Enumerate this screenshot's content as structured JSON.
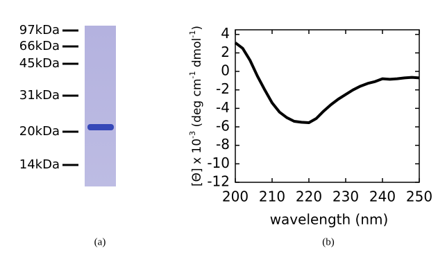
{
  "gel": {
    "markers": [
      "97kDa",
      "66kDa",
      "45kDa",
      "31kDa",
      "20kDa",
      "14kDa"
    ],
    "caption": "(a)"
  },
  "chart_data": {
    "type": "line",
    "caption": "(b)",
    "xlabel": "wavelength (nm)",
    "ylabel": [
      "[Θ] x 10",
      "-3",
      " (deg cm",
      "-1",
      " dmol",
      "-1",
      ")"
    ],
    "x": [
      200,
      202,
      204,
      206,
      208,
      210,
      212,
      214,
      216,
      218,
      220,
      222,
      224,
      226,
      228,
      230,
      232,
      234,
      236,
      238,
      240,
      242,
      244,
      246,
      248,
      250
    ],
    "series": [
      {
        "color": "#000000",
        "values": [
          3.1,
          2.5,
          1.2,
          -0.5,
          -2.0,
          -3.4,
          -4.4,
          -5.0,
          -5.4,
          -5.5,
          -5.55,
          -5.1,
          -4.3,
          -3.6,
          -3.0,
          -2.5,
          -2.0,
          -1.6,
          -1.3,
          -1.1,
          -0.8,
          -0.85,
          -0.8,
          -0.7,
          -0.65,
          -0.7
        ]
      }
    ],
    "xlim": [
      200,
      250
    ],
    "ylim": [
      -12,
      4.5
    ],
    "xticks": [
      200,
      210,
      220,
      230,
      240,
      250
    ],
    "yticks": [
      -12,
      -10,
      -8,
      -6,
      -4,
      -2,
      0,
      2,
      4
    ]
  }
}
